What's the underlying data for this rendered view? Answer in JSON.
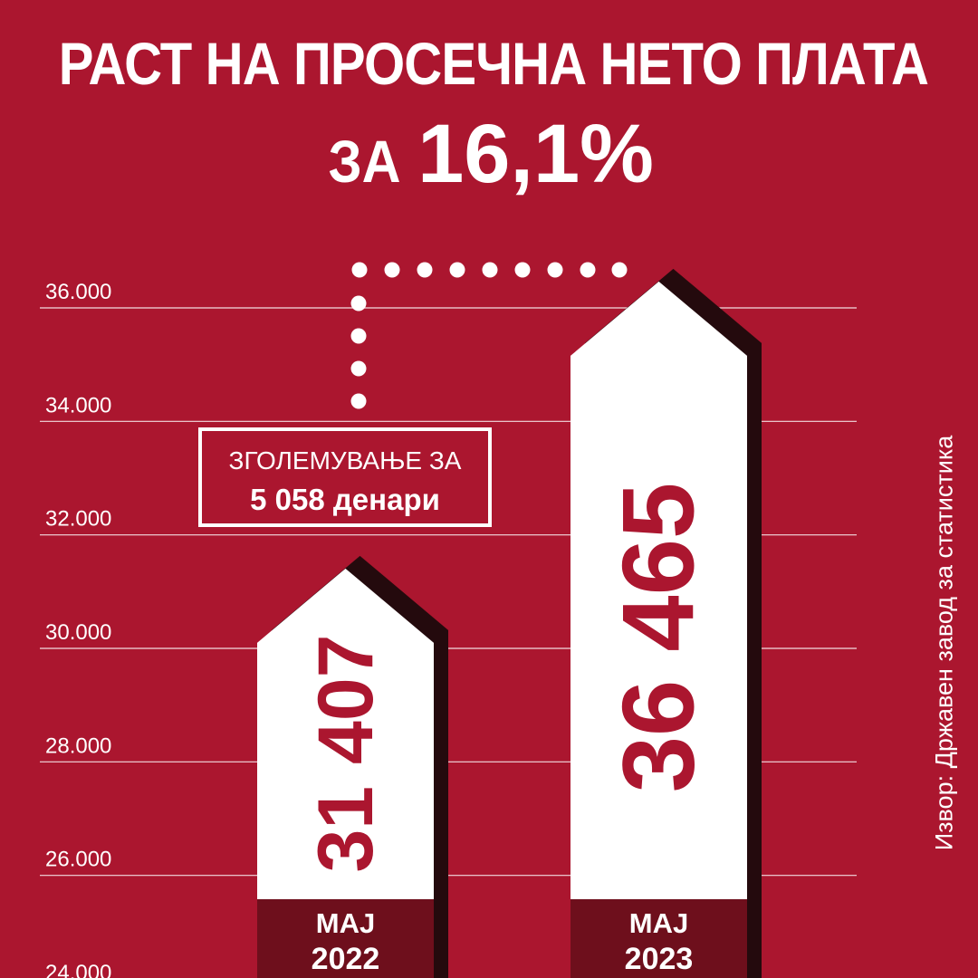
{
  "title": {
    "line1": "РАСТ НА ПРОСЕЧНА НЕТО ПЛАТА",
    "prefix": "ЗА",
    "percent": "16,1%"
  },
  "source": "Извор: Државен завод за статистика",
  "colors": {
    "background": "#ab162f",
    "bar": "#ffffff",
    "bar_shadow": "#240a0d",
    "label_band": "#6e0f1c",
    "value_text": "#ab162f",
    "grid": "#ffffff"
  },
  "annotation": {
    "line1": "ЗГОЛЕМУВАЊЕ ЗА",
    "line2": "5 058 денари"
  },
  "chart_data": {
    "type": "bar",
    "title": "РАСТ НА ПРОСЕЧНА НЕТО ПЛАТА ЗА 16,1%",
    "categories": [
      [
        "МАЈ",
        "2022"
      ],
      [
        "МАЈ",
        "2023"
      ]
    ],
    "values": [
      31407,
      36465
    ],
    "value_labels": [
      "31 407",
      "36 465"
    ],
    "ylim": [
      24000,
      36000
    ],
    "ticks": [
      24000,
      26000,
      28000,
      30000,
      32000,
      34000,
      36000
    ],
    "tick_labels": [
      "24.000",
      "26.000",
      "28.000",
      "30.000",
      "32.000",
      "34.000",
      "36.000"
    ],
    "grid": true,
    "legend": "none",
    "annotation_difference": 5058
  }
}
